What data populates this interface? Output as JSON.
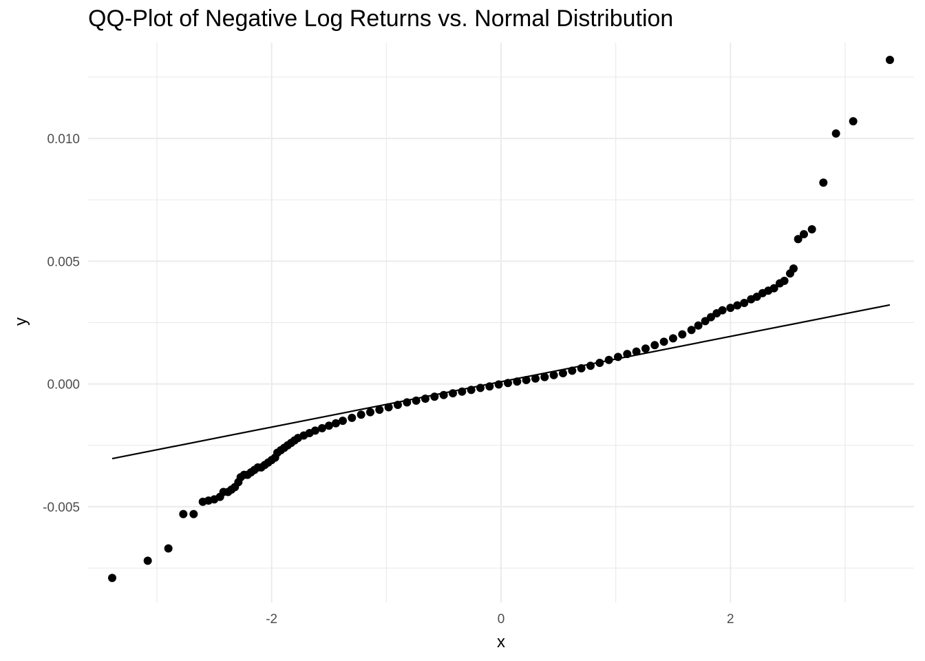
{
  "chart_data": {
    "type": "scatter",
    "title": "QQ-Plot of Negative Log Returns vs. Normal Distribution",
    "xlabel": "x",
    "ylabel": "y",
    "xlim": [
      -3.6,
      3.6
    ],
    "ylim": [
      -0.0089,
      0.0139
    ],
    "x_ticks": [
      -2,
      0,
      2
    ],
    "x_tick_labels": [
      "-2",
      "0",
      "2"
    ],
    "y_ticks": [
      -0.005,
      0.0,
      0.005,
      0.01
    ],
    "y_tick_labels": [
      "-0.005",
      "0.000",
      "0.005",
      "0.010"
    ],
    "grid": true,
    "reference_line": {
      "x": [
        -3.39,
        3.39
      ],
      "y": [
        -0.00304,
        0.00322
      ]
    },
    "series": [
      {
        "points": [
          [
            -3.39,
            -0.0079
          ],
          [
            -3.08,
            -0.0072
          ],
          [
            -2.9,
            -0.0067
          ],
          [
            -2.77,
            -0.0053
          ],
          [
            -2.68,
            -0.0053
          ],
          [
            -2.6,
            -0.0048
          ],
          [
            -2.55,
            -0.00475
          ],
          [
            -2.5,
            -0.0047
          ],
          [
            -2.45,
            -0.0046
          ],
          [
            -2.42,
            -0.0044
          ],
          [
            -2.38,
            -0.0044
          ],
          [
            -2.35,
            -0.0043
          ],
          [
            -2.32,
            -0.0042
          ],
          [
            -2.29,
            -0.004
          ],
          [
            -2.27,
            -0.0038
          ],
          [
            -2.24,
            -0.0037
          ],
          [
            -2.21,
            -0.0037
          ],
          [
            -2.18,
            -0.0036
          ],
          [
            -2.15,
            -0.0035
          ],
          [
            -2.12,
            -0.0034
          ],
          [
            -2.09,
            -0.0034
          ],
          [
            -2.06,
            -0.0033
          ],
          [
            -2.03,
            -0.0032
          ],
          [
            -2.0,
            -0.0031
          ],
          [
            -1.97,
            -0.003
          ],
          [
            -1.95,
            -0.0028
          ],
          [
            -1.92,
            -0.0027
          ],
          [
            -1.89,
            -0.0026
          ],
          [
            -1.86,
            -0.0025
          ],
          [
            -1.83,
            -0.0024
          ],
          [
            -1.8,
            -0.0023
          ],
          [
            -1.77,
            -0.0022
          ],
          [
            -1.72,
            -0.0021
          ],
          [
            -1.67,
            -0.002
          ],
          [
            -1.62,
            -0.0019
          ],
          [
            -1.56,
            -0.0018
          ],
          [
            -1.5,
            -0.0017
          ],
          [
            -1.44,
            -0.0016
          ],
          [
            -1.38,
            -0.0015
          ],
          [
            -1.3,
            -0.00138
          ],
          [
            -1.22,
            -0.00125
          ],
          [
            -1.14,
            -0.00115
          ],
          [
            -1.06,
            -0.00105
          ],
          [
            -0.98,
            -0.00095
          ],
          [
            -0.9,
            -0.00085
          ],
          [
            -0.82,
            -0.00075
          ],
          [
            -0.74,
            -0.00068
          ],
          [
            -0.66,
            -0.0006
          ],
          [
            -0.58,
            -0.00052
          ],
          [
            -0.5,
            -0.00045
          ],
          [
            -0.42,
            -0.00038
          ],
          [
            -0.34,
            -0.00031
          ],
          [
            -0.26,
            -0.00024
          ],
          [
            -0.18,
            -0.00016
          ],
          [
            -0.1,
            -0.0001
          ],
          [
            -0.02,
            -2e-05
          ],
          [
            0.06,
            4e-05
          ],
          [
            0.14,
            0.0001
          ],
          [
            0.22,
            0.00016
          ],
          [
            0.3,
            0.00022
          ],
          [
            0.38,
            0.00028
          ],
          [
            0.46,
            0.00036
          ],
          [
            0.54,
            0.00044
          ],
          [
            0.62,
            0.00054
          ],
          [
            0.7,
            0.00064
          ],
          [
            0.78,
            0.00074
          ],
          [
            0.86,
            0.00086
          ],
          [
            0.94,
            0.00098
          ],
          [
            1.02,
            0.0011
          ],
          [
            1.1,
            0.00122
          ],
          [
            1.18,
            0.00132
          ],
          [
            1.26,
            0.00144
          ],
          [
            1.34,
            0.00158
          ],
          [
            1.42,
            0.00172
          ],
          [
            1.5,
            0.00186
          ],
          [
            1.58,
            0.00202
          ],
          [
            1.66,
            0.0022
          ],
          [
            1.72,
            0.00238
          ],
          [
            1.78,
            0.00256
          ],
          [
            1.83,
            0.00272
          ],
          [
            1.88,
            0.00288
          ],
          [
            1.93,
            0.003
          ],
          [
            2.0,
            0.0031
          ],
          [
            2.06,
            0.0032
          ],
          [
            2.12,
            0.0033
          ],
          [
            2.18,
            0.00345
          ],
          [
            2.23,
            0.00355
          ],
          [
            2.28,
            0.0037
          ],
          [
            2.33,
            0.0038
          ],
          [
            2.38,
            0.0039
          ],
          [
            2.43,
            0.0041
          ],
          [
            2.47,
            0.0042
          ],
          [
            2.52,
            0.0045
          ],
          [
            2.55,
            0.0047
          ],
          [
            2.59,
            0.0059
          ],
          [
            2.64,
            0.0061
          ],
          [
            2.71,
            0.0063
          ],
          [
            2.81,
            0.0082
          ],
          [
            2.92,
            0.0102
          ],
          [
            3.07,
            0.0107
          ],
          [
            3.39,
            0.0132
          ]
        ]
      }
    ]
  }
}
